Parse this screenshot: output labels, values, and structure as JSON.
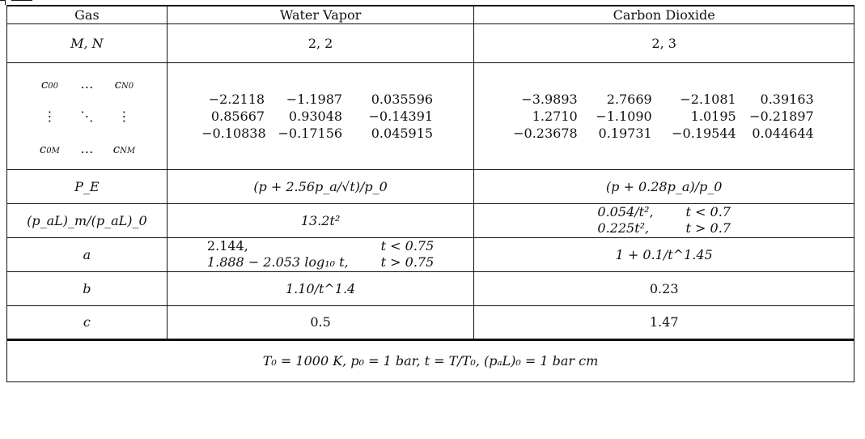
{
  "table": {
    "headers": [
      "Gas",
      "Water Vapor",
      "Carbon Dioxide"
    ],
    "mn_label": "M, N",
    "mn_water": "2, 2",
    "mn_co2": "2, 3",
    "c_labels": {
      "top_left": "c",
      "top_left_sub": "00",
      "dots": "…",
      "top_right": "c",
      "top_right_sub": "N0",
      "vdots": "⋮",
      "ddots": "⋱",
      "bot_left": "c",
      "bot_left_sub": "0M",
      "bot_right": "c",
      "bot_right_sub": "NM"
    },
    "c_water": [
      [
        "−2.2118",
        "−1.1987",
        "0.035596"
      ],
      [
        "0.85667",
        "0.93048",
        "−0.14391"
      ],
      [
        "−0.10838",
        "−0.17156",
        "0.045915"
      ]
    ],
    "c_co2": [
      [
        "−3.9893",
        "2.7669",
        "−2.1081",
        "0.39163"
      ],
      [
        "1.2710",
        "−1.1090",
        "1.0195",
        "−0.21897"
      ],
      [
        "−0.23678",
        "0.19731",
        "−0.19544",
        "0.044644"
      ]
    ],
    "pe_label": "P_E",
    "pe_water": "(p + 2.56p_a/√t)/p_0",
    "pe_co2": "(p + 0.28p_a)/p_0",
    "pal_label": "(p_aL)_m/(p_aL)_0",
    "pal_water": "13.2t²",
    "pal_co2": [
      {
        "expr": "0.054/t²,",
        "cond": "t < 0.7"
      },
      {
        "expr": "0.225t²,",
        "cond": "t > 0.7"
      }
    ],
    "a_label": "a",
    "a_water": [
      {
        "expr": "2.144,",
        "cond": "t < 0.75"
      },
      {
        "expr": "1.888 − 2.053 log₁₀ t,",
        "cond": "t > 0.75"
      }
    ],
    "a_co2": "1 + 0.1/t^1.45",
    "b_label": "b",
    "b_water": "1.10/t^1.4",
    "b_co2": "0.23",
    "c_label": "c",
    "c_water_val": "0.5",
    "c_co2_val": "1.47",
    "footer": "T₀ = 1000 K, p₀ = 1 bar, t = T/T₀, (pₐL)₀ = 1 bar cm"
  }
}
